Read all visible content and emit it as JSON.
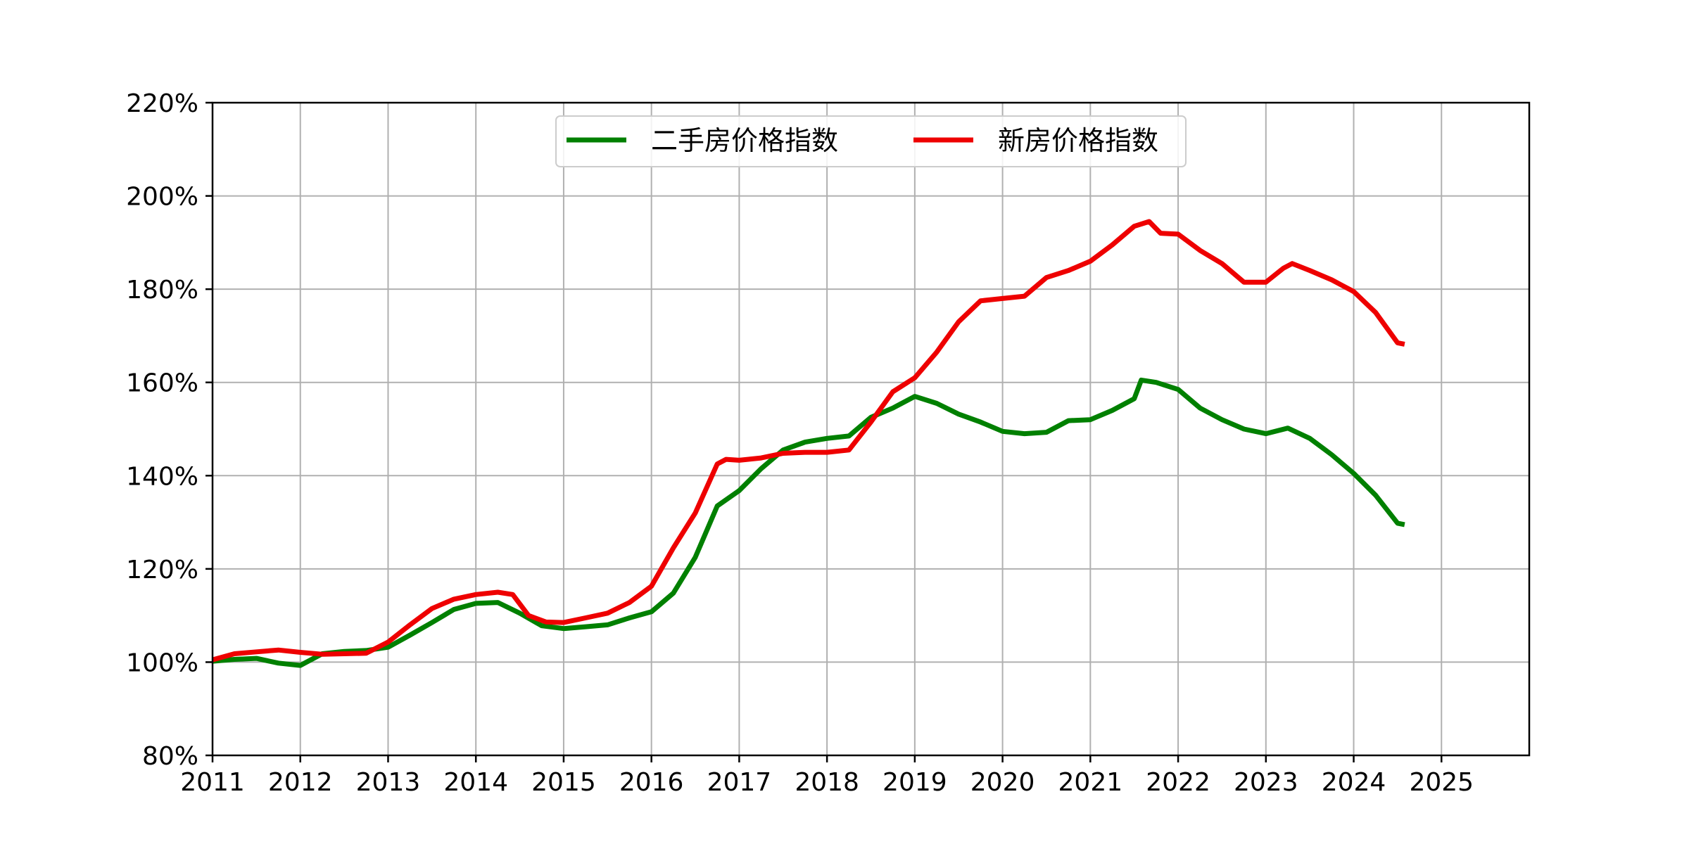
{
  "chart_data": {
    "type": "line",
    "title": "",
    "xlabel": "",
    "ylabel": "",
    "xlim": [
      2011,
      2026
    ],
    "ylim": [
      80,
      220
    ],
    "grid": true,
    "legend_position": "top-center",
    "x_ticks": [
      {
        "value": 2011,
        "label": "2011"
      },
      {
        "value": 2012,
        "label": "2012"
      },
      {
        "value": 2013,
        "label": "2013"
      },
      {
        "value": 2014,
        "label": "2014"
      },
      {
        "value": 2015,
        "label": "2015"
      },
      {
        "value": 2016,
        "label": "2016"
      },
      {
        "value": 2017,
        "label": "2017"
      },
      {
        "value": 2018,
        "label": "2018"
      },
      {
        "value": 2019,
        "label": "2019"
      },
      {
        "value": 2020,
        "label": "2020"
      },
      {
        "value": 2021,
        "label": "2021"
      },
      {
        "value": 2022,
        "label": "2022"
      },
      {
        "value": 2023,
        "label": "2023"
      },
      {
        "value": 2024,
        "label": "2024"
      },
      {
        "value": 2025,
        "label": "2025"
      }
    ],
    "y_ticks": [
      {
        "value": 80,
        "label": "80%"
      },
      {
        "value": 100,
        "label": "100%"
      },
      {
        "value": 120,
        "label": "120%"
      },
      {
        "value": 140,
        "label": "140%"
      },
      {
        "value": 160,
        "label": "160%"
      },
      {
        "value": 180,
        "label": "180%"
      },
      {
        "value": 200,
        "label": "200%"
      },
      {
        "value": 220,
        "label": "220%"
      }
    ],
    "series": [
      {
        "name": "二手房价格指数",
        "color": "#008000",
        "x": [
          2011.0,
          2011.25,
          2011.5,
          2011.75,
          2012.0,
          2012.25,
          2012.5,
          2012.75,
          2013.0,
          2013.25,
          2013.5,
          2013.75,
          2014.0,
          2014.25,
          2014.5,
          2014.75,
          2015.0,
          2015.25,
          2015.5,
          2015.75,
          2016.0,
          2016.25,
          2016.5,
          2016.75,
          2017.0,
          2017.25,
          2017.5,
          2017.75,
          2018.0,
          2018.25,
          2018.5,
          2018.75,
          2019.0,
          2019.25,
          2019.5,
          2019.75,
          2020.0,
          2020.25,
          2020.5,
          2020.75,
          2021.0,
          2021.25,
          2021.5,
          2021.58,
          2021.75,
          2022.0,
          2022.25,
          2022.5,
          2022.75,
          2023.0,
          2023.25,
          2023.5,
          2023.75,
          2024.0,
          2024.25,
          2024.5,
          2024.58
        ],
        "values": [
          100.2,
          100.6,
          100.8,
          99.8,
          99.3,
          101.8,
          102.3,
          102.5,
          103.2,
          105.8,
          108.5,
          111.3,
          112.6,
          112.8,
          110.5,
          107.8,
          107.2,
          107.6,
          108.0,
          109.5,
          110.8,
          114.8,
          122.5,
          133.5,
          136.8,
          141.5,
          145.5,
          147.2,
          148.0,
          148.5,
          152.5,
          154.5,
          157.0,
          155.5,
          153.2,
          151.5,
          149.5,
          149.0,
          149.3,
          151.8,
          152.0,
          154.0,
          156.5,
          160.5,
          160.0,
          158.5,
          154.5,
          152.0,
          150.0,
          149.0,
          150.2,
          148.0,
          144.5,
          140.5,
          135.8,
          129.8,
          129.5
        ]
      },
      {
        "name": "新房价格指数",
        "color": "#ee0000",
        "x": [
          2011.0,
          2011.25,
          2011.5,
          2011.75,
          2012.0,
          2012.25,
          2012.5,
          2012.75,
          2013.0,
          2013.25,
          2013.5,
          2013.75,
          2014.0,
          2014.25,
          2014.42,
          2014.6,
          2014.8,
          2015.0,
          2015.25,
          2015.5,
          2015.75,
          2016.0,
          2016.25,
          2016.5,
          2016.75,
          2016.85,
          2017.0,
          2017.25,
          2017.5,
          2017.75,
          2018.0,
          2018.25,
          2018.5,
          2018.75,
          2019.0,
          2019.25,
          2019.5,
          2019.75,
          2020.0,
          2020.25,
          2020.5,
          2020.75,
          2021.0,
          2021.25,
          2021.5,
          2021.67,
          2021.8,
          2022.0,
          2022.25,
          2022.5,
          2022.75,
          2023.0,
          2023.2,
          2023.3,
          2023.5,
          2023.75,
          2024.0,
          2024.25,
          2024.5,
          2024.58
        ],
        "values": [
          100.5,
          101.8,
          102.2,
          102.6,
          102.1,
          101.7,
          101.8,
          101.9,
          104.3,
          108.0,
          111.5,
          113.5,
          114.5,
          115.0,
          114.5,
          110.0,
          108.6,
          108.5,
          109.5,
          110.5,
          112.8,
          116.3,
          124.5,
          132.0,
          142.5,
          143.5,
          143.3,
          143.8,
          144.8,
          145.0,
          145.0,
          145.5,
          151.5,
          158.0,
          161.0,
          166.5,
          173.0,
          177.5,
          178.0,
          178.5,
          182.5,
          184.0,
          186.0,
          189.5,
          193.5,
          194.5,
          192.0,
          191.8,
          188.3,
          185.5,
          181.5,
          181.5,
          184.5,
          185.5,
          184.0,
          182.0,
          179.5,
          175.0,
          168.5,
          168.2
        ]
      }
    ]
  }
}
